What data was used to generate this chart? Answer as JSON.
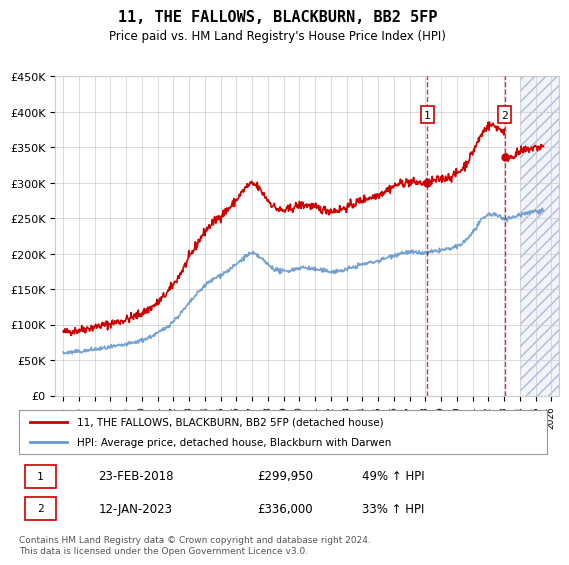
{
  "title": "11, THE FALLOWS, BLACKBURN, BB2 5FP",
  "subtitle": "Price paid vs. HM Land Registry's House Price Index (HPI)",
  "legend_line1": "11, THE FALLOWS, BLACKBURN, BB2 5FP (detached house)",
  "legend_line2": "HPI: Average price, detached house, Blackburn with Darwen",
  "transaction1_label": "1",
  "transaction1_date": "23-FEB-2018",
  "transaction1_price": "£299,950",
  "transaction1_pct": "49% ↑ HPI",
  "transaction2_label": "2",
  "transaction2_date": "12-JAN-2023",
  "transaction2_price": "£336,000",
  "transaction2_pct": "33% ↑ HPI",
  "footer": "Contains HM Land Registry data © Crown copyright and database right 2024.\nThis data is licensed under the Open Government Licence v3.0.",
  "hpi_color": "#6699cc",
  "price_color": "#cc0000",
  "transaction_color": "#cc0000",
  "ylim": [
    0,
    450000
  ],
  "yticks": [
    0,
    50000,
    100000,
    150000,
    200000,
    250000,
    300000,
    350000,
    400000,
    450000
  ],
  "xlim_start": 1995,
  "xlim_end": 2026,
  "t1_x": 2018.12,
  "t1_y": 299950,
  "t2_x": 2023.04,
  "t2_y": 336000,
  "hatch_start": 2024.0,
  "hatch_end": 2026.5
}
